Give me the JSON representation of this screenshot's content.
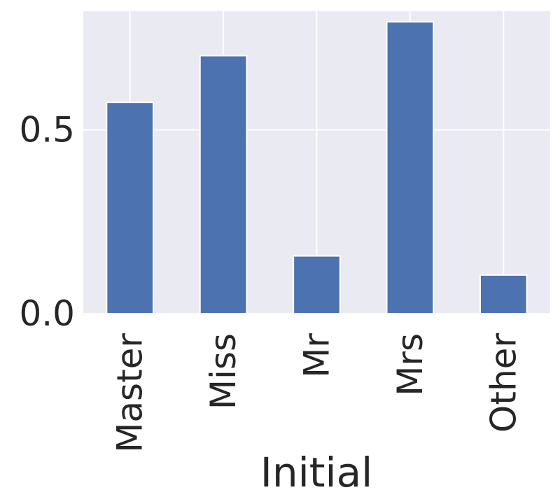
{
  "chart_data": {
    "type": "bar",
    "xlabel": "Initial",
    "ylabel": "",
    "categories": [
      "Master",
      "Miss",
      "Mr",
      "Mrs",
      "Other"
    ],
    "values": [
      0.575,
      0.702,
      0.157,
      0.794,
      0.105
    ],
    "ylim": [
      0,
      0.823
    ],
    "yticks": [
      0.0,
      0.5
    ],
    "ytick_labels": [
      "0.0",
      "0.5"
    ],
    "grid": true,
    "colors": {
      "bar": "#4c72b0",
      "plot_background": "#eaeaf2",
      "grid": "#ffffff",
      "text": "#262626"
    }
  }
}
